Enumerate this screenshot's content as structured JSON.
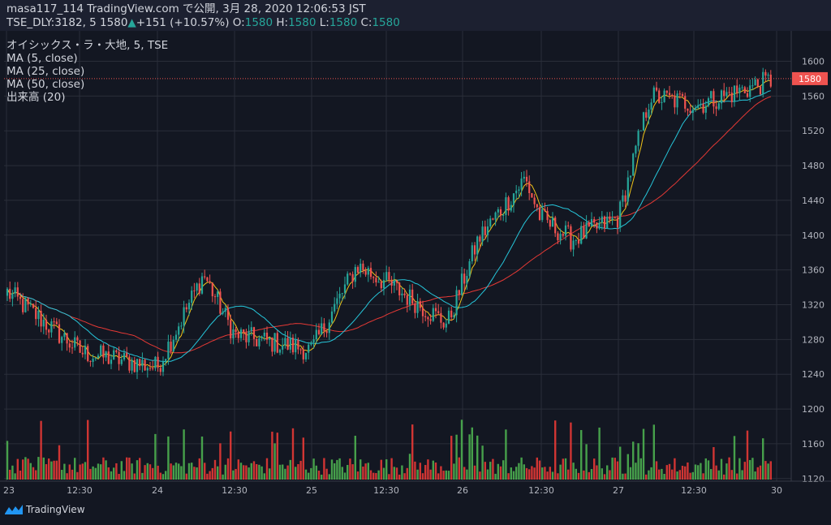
{
  "header": {
    "line1": "masa117_114 TradingView.com で公開, 3月 28, 2020 12:06:53 JST",
    "symbol": "TSE_DLY:3182, 5",
    "last": "1580",
    "change_arrow": "▲",
    "change": "+151 (+10.57%)",
    "o_label": "O:",
    "o_value": "1580",
    "h_label": "H:",
    "h_value": "1580",
    "l_label": "L:",
    "l_value": "1580",
    "c_label": "C:",
    "c_value": "1580"
  },
  "legend": {
    "title": "オイシックス・ラ・大地, 5, TSE",
    "ma5": "MA (5, close)",
    "ma25": "MA (25, close)",
    "ma50": "MA (50, close)",
    "volume": "出来高 (20)"
  },
  "footer": {
    "brand": "TradingView"
  },
  "colors": {
    "background": "#131722",
    "grid": "#2a2e39",
    "up": "#26a69a",
    "down": "#ef5350",
    "ma5": "#f0c419",
    "ma25": "#26c6da",
    "ma50": "#e53935",
    "vol_up": "#4caf50",
    "vol_down": "#e53935",
    "axis_text": "#b2b5be",
    "price_label_bg": "#ef5350"
  },
  "chart_data": {
    "type": "candlestick",
    "interval": "5",
    "symbol": "TSE:3182",
    "y_ticks": [
      1120,
      1160,
      1200,
      1240,
      1280,
      1320,
      1360,
      1400,
      1440,
      1480,
      1520,
      1560,
      1600
    ],
    "ylim": [
      1117,
      1635
    ],
    "x_ticks": [
      "23",
      "12:30",
      "24",
      "12:30",
      "25",
      "12:30",
      "26",
      "12:30",
      "27",
      "12:30",
      "30"
    ],
    "last_price_label": "1580",
    "last_price": 1580,
    "key_points": [
      {
        "x": "23 09:00",
        "y": 1335
      },
      {
        "x": "23 12:30",
        "y": 1265
      },
      {
        "x": "24 09:00",
        "y": 1248
      },
      {
        "x": "24 10:30",
        "y": 1355
      },
      {
        "x": "24 12:30",
        "y": 1285
      },
      {
        "x": "25 09:00",
        "y": 1268
      },
      {
        "x": "25 10:30",
        "y": 1365
      },
      {
        "x": "25 12:30",
        "y": 1345
      },
      {
        "x": "25 14:30",
        "y": 1298
      },
      {
        "x": "26 09:30",
        "y": 1395
      },
      {
        "x": "26 11:00",
        "y": 1465
      },
      {
        "x": "26 12:30",
        "y": 1420
      },
      {
        "x": "26 13:30",
        "y": 1395
      },
      {
        "x": "27 09:00",
        "y": 1420
      },
      {
        "x": "27 10:00",
        "y": 1560
      },
      {
        "x": "27 12:30",
        "y": 1550
      },
      {
        "x": "27 15:00",
        "y": 1580
      }
    ]
  }
}
